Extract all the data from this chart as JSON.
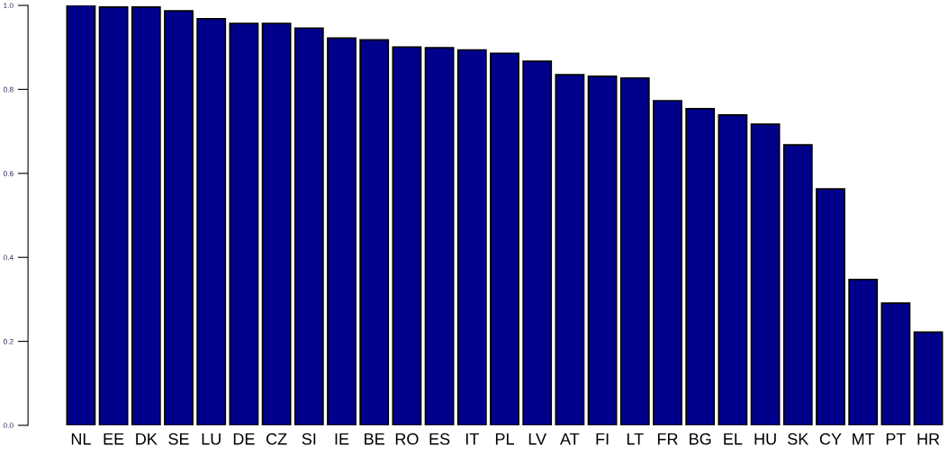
{
  "chart_data": {
    "type": "bar",
    "categories": [
      "NL",
      "EE",
      "DK",
      "SE",
      "LU",
      "DE",
      "CZ",
      "SI",
      "IE",
      "BE",
      "RO",
      "ES",
      "IT",
      "PL",
      "LV",
      "AT",
      "FI",
      "LT",
      "FR",
      "BG",
      "EL",
      "HU",
      "SK",
      "CY",
      "MT",
      "PT",
      "HR"
    ],
    "values": [
      1.0,
      0.996,
      0.996,
      0.987,
      0.968,
      0.957,
      0.957,
      0.946,
      0.922,
      0.918,
      0.901,
      0.899,
      0.894,
      0.886,
      0.867,
      0.835,
      0.831,
      0.827,
      0.773,
      0.754,
      0.739,
      0.717,
      0.668,
      0.563,
      0.347,
      0.291,
      0.222
    ],
    "color": "#00008b",
    "ylim": [
      0,
      1.0
    ],
    "yticks": [
      {
        "value": 0,
        "label": "0.0"
      },
      {
        "value": 0.2,
        "label": "0.2"
      },
      {
        "value": 0.4,
        "label": "0.4"
      },
      {
        "value": 0.6,
        "label": "0.6"
      },
      {
        "value": 0.8,
        "label": "0.8"
      },
      {
        "value": 1.0,
        "label": "1.0"
      }
    ],
    "grid": false
  }
}
